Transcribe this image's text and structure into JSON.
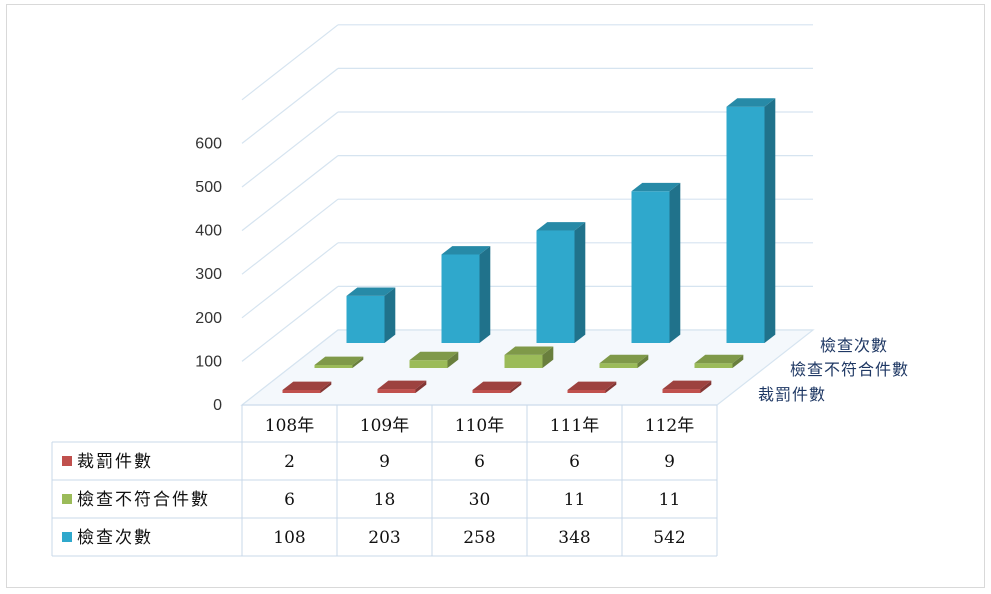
{
  "chart_data": {
    "type": "bar",
    "subtype": "3d-column-with-data-table",
    "categories": [
      "108年",
      "109年",
      "110年",
      "111年",
      "112年"
    ],
    "series": [
      {
        "name": "裁罰件數",
        "values": [
          2,
          9,
          6,
          6,
          9
        ],
        "color": "#c0504d"
      },
      {
        "name": "檢查不符合件數",
        "values": [
          6,
          18,
          30,
          11,
          11
        ],
        "color": "#9bbb59"
      },
      {
        "name": "檢查次數",
        "values": [
          108,
          203,
          258,
          348,
          542
        ],
        "color": "#2fa8cc"
      }
    ],
    "y_ticks": [
      "0",
      "100",
      "200",
      "300",
      "400",
      "500",
      "600"
    ],
    "ylim": [
      0,
      600
    ],
    "grid": true,
    "legend": "data-table-left"
  }
}
